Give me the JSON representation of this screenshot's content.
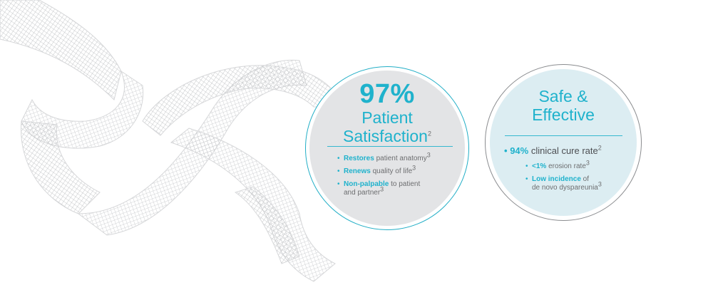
{
  "left_circle": {
    "stat": "97%",
    "title_line1": "Patient",
    "title_line2": "Satisfaction",
    "title_ref": "2",
    "bullets": [
      {
        "highlight": "Restores",
        "text": " patient anatomy",
        "ref": "3"
      },
      {
        "highlight": "Renews",
        "text": " quality of life",
        "ref": "3"
      },
      {
        "highlight": "Non-palpable",
        "text": " to patient",
        "text2": "and partner",
        "ref": "3"
      }
    ]
  },
  "right_circle": {
    "title_line1": "Safe &",
    "title_line2": "Effective",
    "main_bullet_value": "94%",
    "main_bullet_text": " clinical cure rate",
    "main_bullet_ref": "2",
    "bullets": [
      {
        "highlight": "<1%",
        "text": " erosion rate",
        "ref": "3"
      },
      {
        "highlight": "Low incidence",
        "text": " of",
        "text2": "de novo dyspareunia",
        "ref": "3"
      }
    ]
  },
  "colors": {
    "accent": "#1fb2cc",
    "text_grey": "#6d6e70",
    "left_fill": "#e3e4e6",
    "right_fill": "#dcedf2"
  },
  "decoration": "mesh-ribbon-image"
}
